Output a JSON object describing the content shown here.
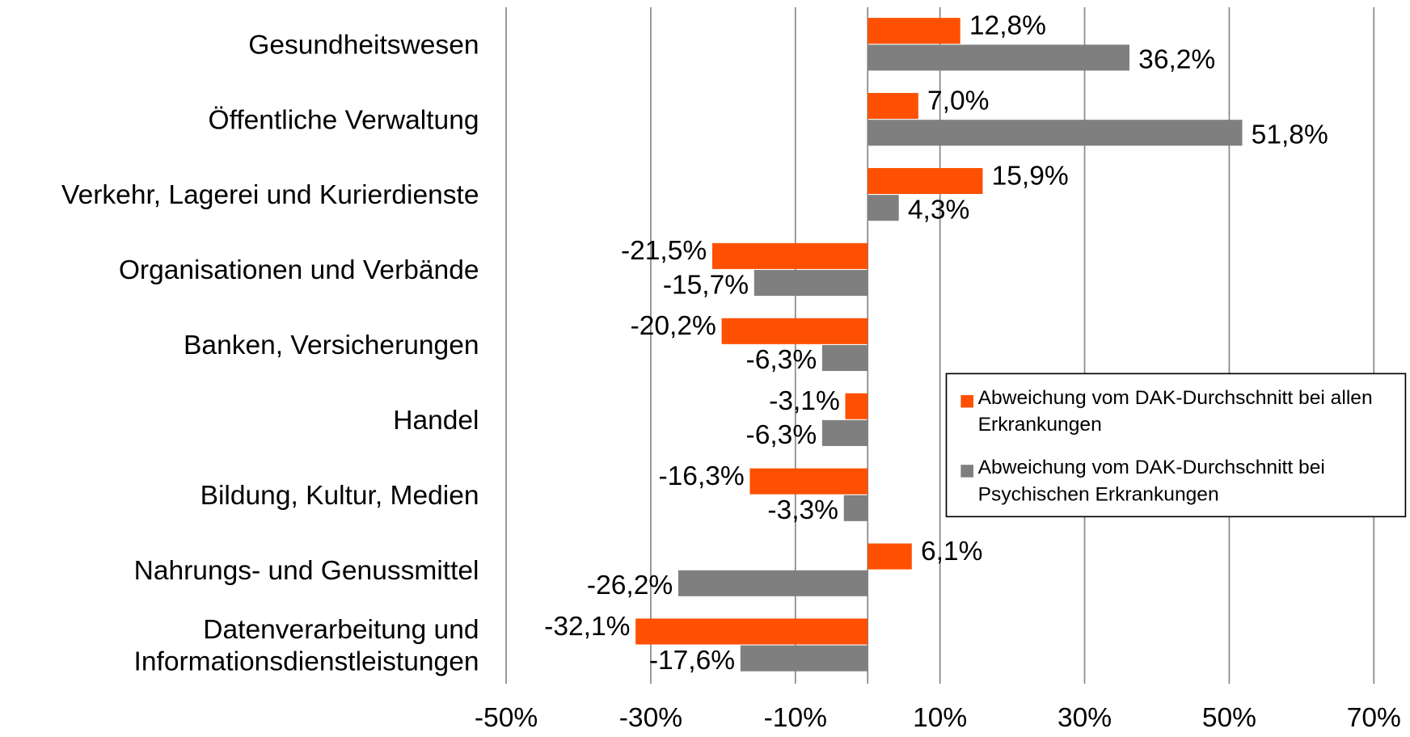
{
  "chart_data": {
    "type": "bar",
    "orientation": "horizontal",
    "categories": [
      "Gesundheitswesen",
      "Öffentliche Verwaltung",
      "Verkehr, Lagerei und Kurierdienste",
      "Organisationen und Verbände",
      "Banken, Versicherungen",
      "Handel",
      "Bildung, Kultur, Medien",
      "Nahrungs- und Genussmittel",
      "Datenverarbeitung und Informationsdienstleistungen"
    ],
    "series": [
      {
        "name": "Abweichung vom DAK-Durchschnitt bei allen Erkrankungen",
        "color": "#fe5000",
        "values": [
          12.8,
          7.0,
          15.9,
          -21.5,
          -20.2,
          -3.1,
          -16.3,
          6.1,
          -32.1
        ],
        "value_labels": [
          "12,8%",
          "7,0%",
          "15,9%",
          "-21,5%",
          "-20,2%",
          "-3,1%",
          "-16,3%",
          "6,1%",
          "-32,1%"
        ]
      },
      {
        "name": "Abweichung vom DAK-Durchschnitt bei Psychischen Erkrankungen",
        "color": "#7f7f7f",
        "values": [
          36.2,
          51.8,
          4.3,
          -15.7,
          -6.3,
          -6.3,
          -3.3,
          -26.2,
          -17.6
        ],
        "value_labels": [
          "36,2%",
          "51,8%",
          "4,3%",
          "-15,7%",
          "-6,3%",
          "-6,3%",
          "-3,3%",
          "-26,2%",
          "-17,6%"
        ]
      }
    ],
    "xlim": [
      -50,
      70
    ],
    "xticks": [
      {
        "value": -50,
        "label": "-50%"
      },
      {
        "value": -30,
        "label": "-30%"
      },
      {
        "value": -10,
        "label": "-10%"
      },
      {
        "value": 10,
        "label": "10%"
      },
      {
        "value": 30,
        "label": "30%"
      },
      {
        "value": 50,
        "label": "50%"
      },
      {
        "value": 70,
        "label": "70%"
      }
    ],
    "grid": true,
    "legend": "right"
  }
}
